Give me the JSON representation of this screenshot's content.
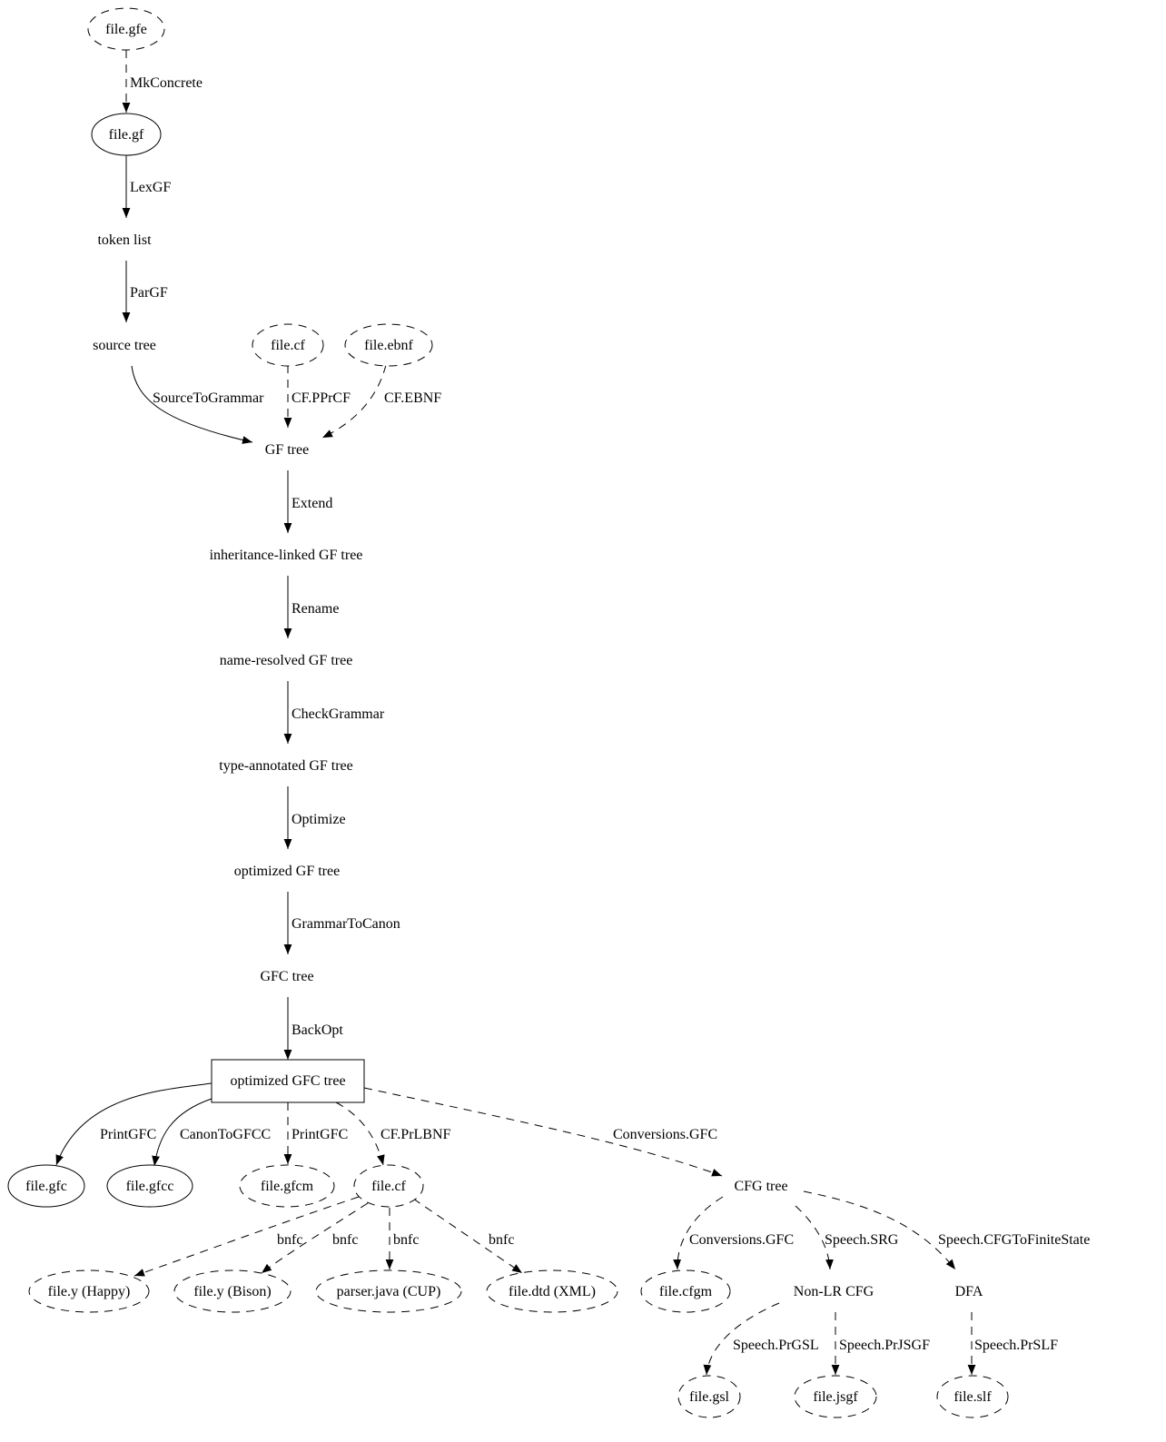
{
  "nodes": [
    {
      "id": "gfe",
      "label": "file.gfe",
      "shape": "ellipse",
      "style": "dashed"
    },
    {
      "id": "gf",
      "label": "file.gf",
      "shape": "ellipse",
      "style": "solid"
    },
    {
      "id": "tokens",
      "label": "token list",
      "shape": "plaintext"
    },
    {
      "id": "source",
      "label": "source tree",
      "shape": "plaintext"
    },
    {
      "id": "cf1",
      "label": "file.cf",
      "shape": "ellipse",
      "style": "dashed"
    },
    {
      "id": "ebnf",
      "label": "file.ebnf",
      "shape": "ellipse",
      "style": "dashed"
    },
    {
      "id": "gftree",
      "label": "GF tree",
      "shape": "plaintext"
    },
    {
      "id": "inh",
      "label": "inheritance-linked GF tree",
      "shape": "plaintext"
    },
    {
      "id": "nameres",
      "label": "name-resolved GF tree",
      "shape": "plaintext"
    },
    {
      "id": "typeann",
      "label": "type-annotated GF tree",
      "shape": "plaintext"
    },
    {
      "id": "optgf",
      "label": "optimized GF tree",
      "shape": "plaintext"
    },
    {
      "id": "gfc",
      "label": "GFC tree",
      "shape": "plaintext"
    },
    {
      "id": "optgfc",
      "label": "optimized GFC tree",
      "shape": "box",
      "style": "solid"
    },
    {
      "id": "gfcf",
      "label": "file.gfc",
      "shape": "ellipse",
      "style": "solid"
    },
    {
      "id": "gfcc",
      "label": "file.gfcc",
      "shape": "ellipse",
      "style": "solid"
    },
    {
      "id": "gfcm",
      "label": "file.gfcm",
      "shape": "ellipse",
      "style": "dashed"
    },
    {
      "id": "cf2",
      "label": "file.cf",
      "shape": "ellipse",
      "style": "dashed"
    },
    {
      "id": "cfgtree",
      "label": "CFG tree",
      "shape": "plaintext"
    },
    {
      "id": "happy",
      "label": "file.y (Happy)",
      "shape": "ellipse",
      "style": "dashed"
    },
    {
      "id": "bison",
      "label": "file.y (Bison)",
      "shape": "ellipse",
      "style": "dashed"
    },
    {
      "id": "cup",
      "label": "parser.java (CUP)",
      "shape": "ellipse",
      "style": "dashed"
    },
    {
      "id": "dtd",
      "label": "file.dtd (XML)",
      "shape": "ellipse",
      "style": "dashed"
    },
    {
      "id": "cfgm",
      "label": "file.cfgm",
      "shape": "ellipse",
      "style": "dashed"
    },
    {
      "id": "nonlr",
      "label": "Non-LR CFG",
      "shape": "plaintext"
    },
    {
      "id": "dfa",
      "label": "DFA",
      "shape": "plaintext"
    },
    {
      "id": "gsl",
      "label": "file.gsl",
      "shape": "ellipse",
      "style": "dashed"
    },
    {
      "id": "jsgf",
      "label": "file.jsgf",
      "shape": "ellipse",
      "style": "dashed"
    },
    {
      "id": "slf",
      "label": "file.slf",
      "shape": "ellipse",
      "style": "dashed"
    }
  ],
  "edges": [
    {
      "from": "gfe",
      "to": "gf",
      "label": "MkConcrete",
      "style": "dashed"
    },
    {
      "from": "gf",
      "to": "tokens",
      "label": "LexGF",
      "style": "solid"
    },
    {
      "from": "tokens",
      "to": "source",
      "label": "ParGF",
      "style": "solid"
    },
    {
      "from": "source",
      "to": "gftree",
      "label": "SourceToGrammar",
      "style": "solid"
    },
    {
      "from": "cf1",
      "to": "gftree",
      "label": "CF.PPrCF",
      "style": "dashed"
    },
    {
      "from": "ebnf",
      "to": "gftree",
      "label": "CF.EBNF",
      "style": "dashed"
    },
    {
      "from": "gftree",
      "to": "inh",
      "label": "Extend",
      "style": "solid"
    },
    {
      "from": "inh",
      "to": "nameres",
      "label": "Rename",
      "style": "solid"
    },
    {
      "from": "nameres",
      "to": "typeann",
      "label": "CheckGrammar",
      "style": "solid"
    },
    {
      "from": "typeann",
      "to": "optgf",
      "label": "Optimize",
      "style": "solid"
    },
    {
      "from": "optgf",
      "to": "gfc",
      "label": "GrammarToCanon",
      "style": "solid"
    },
    {
      "from": "gfc",
      "to": "optgfc",
      "label": "BackOpt",
      "style": "solid"
    },
    {
      "from": "optgfc",
      "to": "gfcf",
      "label": "PrintGFC",
      "style": "solid"
    },
    {
      "from": "optgfc",
      "to": "gfcc",
      "label": "CanonToGFCC",
      "style": "solid"
    },
    {
      "from": "optgfc",
      "to": "gfcm",
      "label": "PrintGFC",
      "style": "dashed"
    },
    {
      "from": "optgfc",
      "to": "cf2",
      "label": "CF.PrLBNF",
      "style": "dashed"
    },
    {
      "from": "optgfc",
      "to": "cfgtree",
      "label": "Conversions.GFC",
      "style": "dashed"
    },
    {
      "from": "cf2",
      "to": "happy",
      "label": "bnfc",
      "style": "dashed"
    },
    {
      "from": "cf2",
      "to": "bison",
      "label": "bnfc",
      "style": "dashed"
    },
    {
      "from": "cf2",
      "to": "cup",
      "label": "bnfc",
      "style": "dashed"
    },
    {
      "from": "cf2",
      "to": "dtd",
      "label": "bnfc",
      "style": "dashed"
    },
    {
      "from": "cfgtree",
      "to": "cfgm",
      "label": "Conversions.GFC",
      "style": "dashed"
    },
    {
      "from": "cfgtree",
      "to": "nonlr",
      "label": "Speech.SRG",
      "style": "dashed"
    },
    {
      "from": "cfgtree",
      "to": "dfa",
      "label": "Speech.CFGToFiniteState",
      "style": "dashed"
    },
    {
      "from": "nonlr",
      "to": "gsl",
      "label": "Speech.PrGSL",
      "style": "dashed"
    },
    {
      "from": "nonlr",
      "to": "jsgf",
      "label": "Speech.PrJSGF",
      "style": "dashed"
    },
    {
      "from": "dfa",
      "to": "slf",
      "label": "Speech.PrSLF",
      "style": "dashed"
    }
  ]
}
